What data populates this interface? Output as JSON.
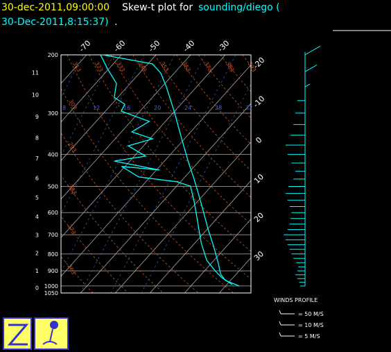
{
  "header": {
    "date": "30-dec-2011,09:00:00",
    "title": "Skew-t plot for",
    "source": "sounding/diego (",
    "issued": "30-Dec-2011,8:15:37)",
    "end": "."
  },
  "chart_data": {
    "type": "skew-t",
    "plim": [
      200,
      1050
    ],
    "pressure_levels": [
      200,
      300,
      400,
      500,
      600,
      700,
      800,
      900,
      1000,
      1050
    ],
    "height_ticks": [
      0,
      1,
      2,
      3,
      4,
      5,
      6,
      7,
      8,
      9,
      10,
      11
    ],
    "temperature_ticks": [
      -70,
      -60,
      -50,
      -40,
      -30,
      -20,
      -10,
      0,
      10,
      20,
      30
    ],
    "dry_adiabats": [
      253,
      263,
      273,
      283,
      293,
      303,
      313,
      323,
      333,
      343,
      353,
      363,
      373,
      383,
      393
    ],
    "moist_labels": [
      8,
      12,
      16,
      20,
      24,
      28,
      32
    ],
    "series": [
      {
        "color": "#00ffff",
        "pressure": [
          1000,
          962,
          921,
          857,
          759,
          673,
          582,
          516,
          475,
          425,
          359,
          300,
          250,
          227,
          213,
          202,
          200
        ],
        "values": [
          33.9,
          28.5,
          25.5,
          22.2,
          16.3,
          10.2,
          3.2,
          -2.7,
          -6.8,
          -12.5,
          -20.8,
          -29.5,
          -38.7,
          -43.9,
          -48.7,
          -62.6,
          -65.4
        ]
      },
      {
        "color": "#00ffff",
        "pressure": [
          991,
          944,
          899,
          836,
          741,
          641,
          555,
          499,
          484,
          468,
          435,
          446,
          419,
          405,
          377,
          359,
          342,
          318,
          296,
          282,
          269,
          244,
          221,
          200
        ],
        "values": [
          31.6,
          26.8,
          23.0,
          17.9,
          11.8,
          5.4,
          -1.0,
          -6.0,
          -11.1,
          -23.3,
          -31.0,
          -19.1,
          -34.5,
          -26.7,
          -34.4,
          -29.2,
          -37.0,
          -34.7,
          -45.4,
          -46.2,
          -51.0,
          -54.0,
          -60.2,
          -66
        ]
      }
    ],
    "winds": {
      "title": "WINDS PROFILE",
      "pressure": [
        1000,
        975,
        950,
        925,
        900,
        875,
        850,
        825,
        800,
        775,
        750,
        725,
        700,
        675,
        650,
        625,
        600,
        575,
        550,
        525,
        500,
        475,
        450,
        425,
        400,
        375,
        350,
        325,
        300,
        275,
        250,
        225,
        200
      ],
      "speeds": [
        5,
        6,
        8,
        10,
        8,
        7,
        9,
        12,
        14,
        16,
        18,
        20,
        22,
        18,
        16,
        15,
        14,
        16,
        18,
        20,
        17,
        12,
        10,
        14,
        18,
        20,
        15,
        12,
        10,
        8,
        6,
        14,
        18
      ],
      "directions": [
        270,
        270,
        270,
        270,
        270,
        270,
        270,
        270,
        270,
        270,
        270,
        270,
        270,
        270,
        270,
        270,
        270,
        270,
        270,
        270,
        270,
        270,
        270,
        270,
        270,
        270,
        270,
        270,
        270,
        270,
        60,
        60,
        60
      ],
      "legend": [
        {
          "value": 50,
          "label": "= 50 M/S"
        },
        {
          "value": 10,
          "label": "= 10 M/S"
        },
        {
          "value": 5,
          "label": "= 5 M/S"
        }
      ]
    }
  }
}
